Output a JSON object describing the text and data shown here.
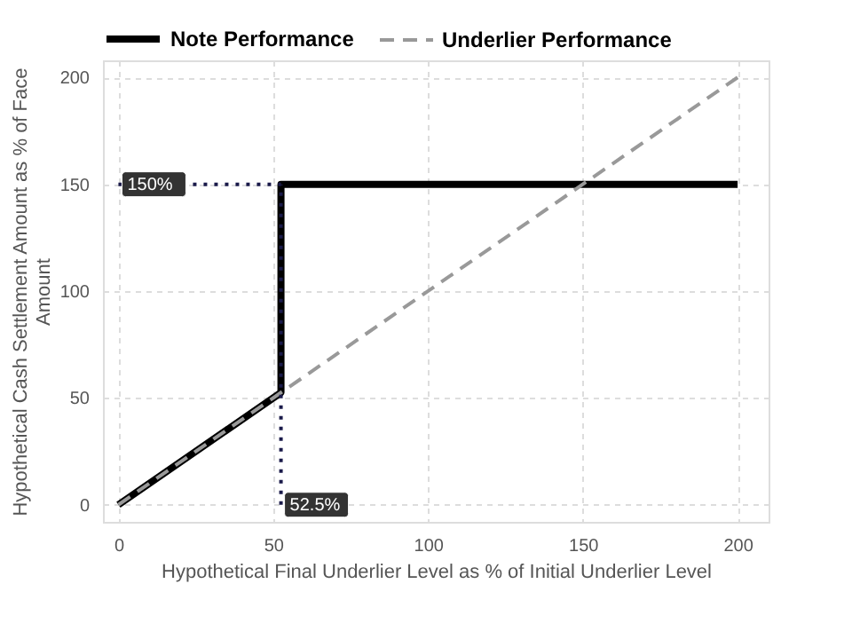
{
  "chart_data": {
    "type": "line",
    "xlabel": "Hypothetical Final Underlier Level as % of Initial Underlier Level",
    "ylabel": "Hypothetical Cash Settlement Amount as % of Face Amount",
    "series": [
      {
        "name": "Note Performance",
        "color": "#000000",
        "line_style": "solid",
        "x": [
          0,
          52.5,
          52.5,
          200
        ],
        "values": [
          0,
          52.5,
          150,
          150
        ]
      },
      {
        "name": "Underlier Performance",
        "color": "#999999",
        "line_style": "dashed",
        "x": [
          0,
          200
        ],
        "values": [
          0,
          200
        ]
      },
      {
        "color": "#1a1a4a",
        "line_style": "dotted",
        "x": [
          0,
          52.5
        ],
        "values": [
          150,
          150
        ]
      },
      {
        "color": "#1a1a4a",
        "line_style": "dotted",
        "x": [
          52.5,
          52.5
        ],
        "values": [
          0,
          150
        ]
      }
    ],
    "annotations": [
      {
        "text": "150%",
        "x": 0,
        "y": 150
      },
      {
        "text": "52.5%",
        "x": 52.5,
        "y": 0
      }
    ],
    "xlim": [
      -5,
      210
    ],
    "ylim": [
      -8,
      208
    ],
    "xticks": [
      0,
      50,
      100,
      150,
      200
    ],
    "yticks": [
      0,
      50,
      100,
      150,
      200
    ],
    "grid": true,
    "legend": "top left"
  }
}
